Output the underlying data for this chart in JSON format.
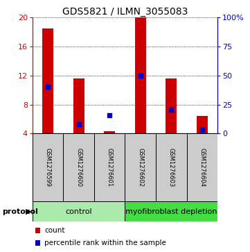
{
  "title": "GDS5821 / ILMN_3055083",
  "samples": [
    "GSM1276599",
    "GSM1276600",
    "GSM1276601",
    "GSM1276602",
    "GSM1276603",
    "GSM1276604"
  ],
  "red_bar_top": [
    18.5,
    11.6,
    4.3,
    20.0,
    11.6,
    6.4
  ],
  "blue_y": [
    10.5,
    5.3,
    6.5,
    12.0,
    7.3,
    4.5
  ],
  "ymin": 4,
  "ymax": 20,
  "yticks": [
    4,
    8,
    12,
    16,
    20
  ],
  "right_yticks": [
    0,
    25,
    50,
    75,
    100
  ],
  "right_yticklabels": [
    "0",
    "25",
    "50",
    "75",
    "100%"
  ],
  "groups": [
    {
      "label": "control",
      "start": 0,
      "end": 3,
      "color": "#aaeaaa"
    },
    {
      "label": "myofibroblast depletion",
      "start": 3,
      "end": 6,
      "color": "#44dd44"
    }
  ],
  "bar_color": "#CC0000",
  "blue_color": "#0000CC",
  "bar_width": 0.35,
  "left_axis_color": "#CC0000",
  "right_axis_color": "#0000CC",
  "title_fontsize": 10,
  "tick_fontsize": 8,
  "sample_fontsize": 6,
  "legend_fontsize": 7.5,
  "proto_fontsize": 8
}
